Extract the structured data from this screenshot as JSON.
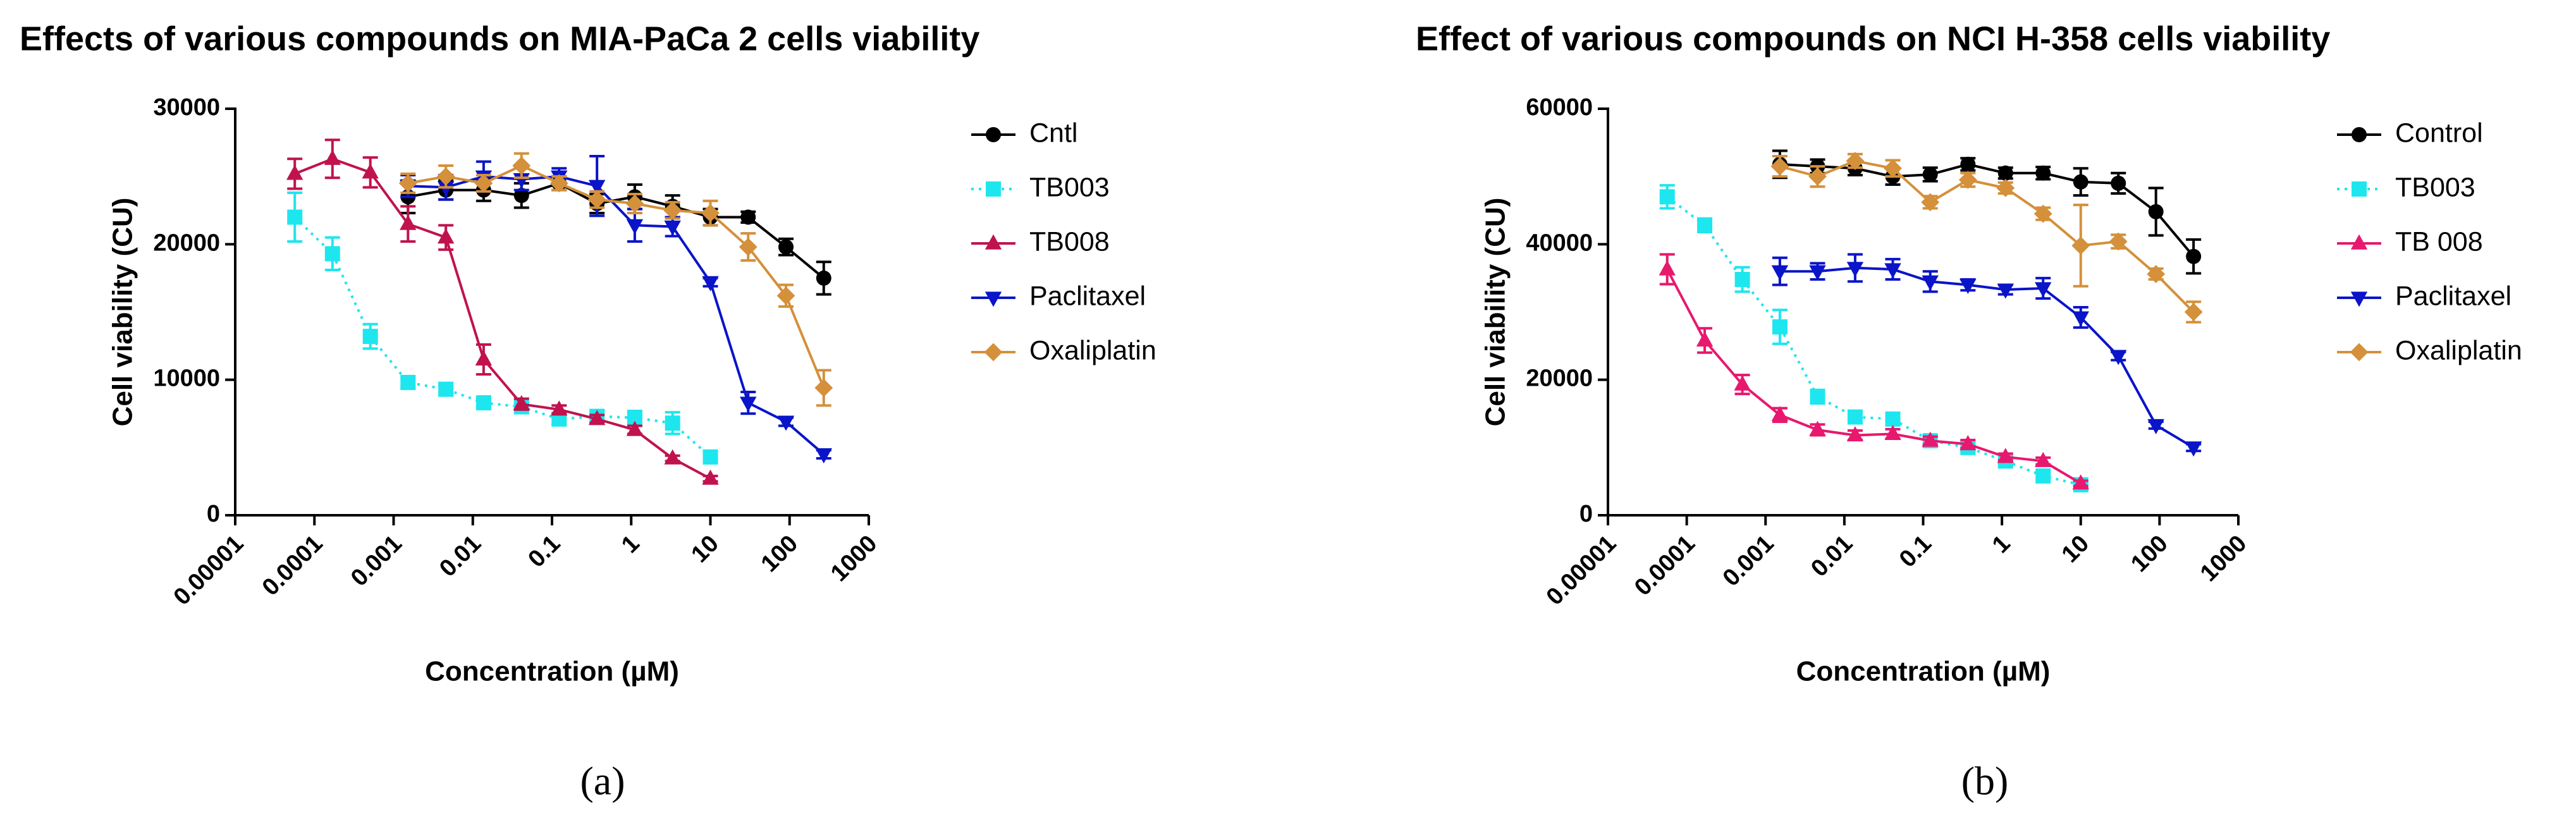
{
  "chart_data": [
    {
      "type": "line",
      "title": "Effects of various compounds on MIA-PaCa 2 cells viability",
      "label": "(a)",
      "x_label": "Concentration (µM)",
      "y_label": "Cell viability (CU)",
      "log_x": true,
      "xlim": [
        1e-05,
        1000
      ],
      "xticks": [
        1e-05,
        0.0001,
        0.001,
        0.01,
        0.1,
        1,
        10,
        100,
        1000
      ],
      "ylim": [
        0,
        30000
      ],
      "yticks": [
        0,
        10000,
        20000,
        30000
      ],
      "legend": "right",
      "series": [
        {
          "name": "Cntl",
          "color": "#000000",
          "marker": "circle",
          "dash": "solid",
          "x": [
            0.00152,
            0.00457,
            0.0137,
            0.0412,
            0.123,
            0.37,
            1.11,
            3.33,
            10,
            30,
            90,
            270
          ],
          "values": [
            23500,
            24000,
            24000,
            23600,
            24500,
            23000,
            23500,
            22800,
            22000,
            22000,
            19800,
            17500
          ],
          "errors": [
            1200,
            700,
            800,
            900,
            500,
            700,
            900,
            800,
            600,
            400,
            600,
            1200
          ]
        },
        {
          "name": "TB003",
          "color": "#1ee6ee",
          "marker": "square",
          "dash": "dotted",
          "x": [
            5.65e-05,
            0.000169,
            0.000508,
            0.00152,
            0.00457,
            0.0137,
            0.0412,
            0.123,
            0.37,
            1.11,
            3.33,
            10
          ],
          "values": [
            22000,
            19300,
            13200,
            9800,
            9300,
            8300,
            8000,
            7100,
            7300,
            7200,
            6800,
            4300
          ],
          "errors": [
            1800,
            1200,
            900,
            400,
            400,
            300,
            300,
            400,
            400,
            500,
            800,
            400
          ]
        },
        {
          "name": "TB008",
          "color": "#c0134e",
          "marker": "triangle-up",
          "dash": "solid",
          "x": [
            5.65e-05,
            0.000169,
            0.000508,
            0.00152,
            0.00457,
            0.0137,
            0.0412,
            0.123,
            0.37,
            1.11,
            3.33,
            10
          ],
          "values": [
            25200,
            26300,
            25300,
            21500,
            20500,
            11500,
            8200,
            7800,
            7100,
            6300,
            4200,
            2700
          ],
          "errors": [
            1100,
            1400,
            1100,
            1300,
            900,
            1100,
            400,
            300,
            300,
            300,
            200,
            200
          ]
        },
        {
          "name": "Paclitaxel",
          "color": "#0a14c8",
          "marker": "triangle-down",
          "dash": "solid",
          "x": [
            0.00152,
            0.00457,
            0.0137,
            0.0412,
            0.123,
            0.37,
            1.11,
            3.33,
            10,
            30,
            90,
            270
          ],
          "values": [
            24300,
            24200,
            25000,
            24800,
            25000,
            24300,
            21400,
            21300,
            17200,
            8300,
            6900,
            4500
          ],
          "errors": [
            800,
            900,
            1100,
            800,
            600,
            2200,
            1200,
            700,
            300,
            800,
            300,
            300
          ]
        },
        {
          "name": "Oxaliplatin",
          "color": "#d4903a",
          "marker": "diamond",
          "dash": "solid",
          "x": [
            0.00152,
            0.00457,
            0.0137,
            0.0412,
            0.123,
            0.37,
            1.11,
            3.33,
            10,
            30,
            90,
            270
          ],
          "values": [
            24500,
            25000,
            24500,
            25800,
            24500,
            23300,
            23000,
            22500,
            22300,
            19800,
            16200,
            9400
          ],
          "errors": [
            700,
            800,
            600,
            900,
            500,
            600,
            700,
            600,
            900,
            1000,
            800,
            1300
          ]
        }
      ]
    },
    {
      "type": "line",
      "title": "Effect of various compounds on NCI H-358 cells viability",
      "label": "(b)",
      "x_label": "Concentration (µM)",
      "y_label": "Cell viability (CU)",
      "log_x": true,
      "xlim": [
        1e-05,
        1000
      ],
      "xticks": [
        1e-05,
        0.0001,
        0.001,
        0.01,
        0.1,
        1,
        10,
        100,
        1000
      ],
      "ylim": [
        0,
        60000
      ],
      "yticks": [
        0,
        20000,
        40000,
        60000
      ],
      "legend": "right",
      "series": [
        {
          "name": "Control",
          "color": "#000000",
          "marker": "circle",
          "dash": "solid",
          "x": [
            0.00152,
            0.00457,
            0.0137,
            0.0412,
            0.123,
            0.37,
            1.11,
            3.33,
            10,
            30,
            90,
            270
          ],
          "values": [
            51800,
            51500,
            51200,
            50000,
            50300,
            51800,
            50500,
            50500,
            49200,
            49000,
            44800,
            38200
          ],
          "errors": [
            2000,
            1000,
            1000,
            1200,
            1000,
            900,
            800,
            900,
            2000,
            1500,
            3500,
            2500
          ]
        },
        {
          "name": "TB003",
          "color": "#1ee6ee",
          "marker": "square",
          "dash": "dotted",
          "x": [
            5.65e-05,
            0.000169,
            0.000508,
            0.00152,
            0.00457,
            0.0137,
            0.0412,
            0.123,
            0.37,
            1.11,
            3.33,
            10
          ],
          "values": [
            47000,
            42800,
            34800,
            27800,
            17500,
            14500,
            14200,
            11000,
            10000,
            8000,
            5800,
            4500
          ],
          "errors": [
            1700,
            1000,
            1800,
            2500,
            1000,
            900,
            800,
            700,
            600,
            700,
            600,
            500
          ]
        },
        {
          "name": "TB 008",
          "color": "#e8186e",
          "marker": "triangle-up",
          "dash": "solid",
          "x": [
            5.65e-05,
            0.000169,
            0.000508,
            0.00152,
            0.00457,
            0.0137,
            0.0412,
            0.123,
            0.37,
            1.11,
            3.33,
            10
          ],
          "values": [
            36300,
            25800,
            19300,
            14800,
            12600,
            11800,
            12000,
            11000,
            10500,
            8600,
            8000,
            4700
          ],
          "errors": [
            2200,
            1800,
            1400,
            1000,
            800,
            700,
            700,
            600,
            600,
            500,
            500,
            400
          ]
        },
        {
          "name": "Paclitaxel",
          "color": "#0a14c8",
          "marker": "triangle-down",
          "dash": "solid",
          "x": [
            0.00152,
            0.00457,
            0.0137,
            0.0412,
            0.123,
            0.37,
            1.11,
            3.33,
            10,
            30,
            90,
            270
          ],
          "values": [
            36000,
            36000,
            36500,
            36300,
            34500,
            34000,
            33300,
            33500,
            29200,
            23500,
            13300,
            10000
          ],
          "errors": [
            2000,
            1200,
            2000,
            1500,
            1500,
            800,
            700,
            1500,
            1500,
            600,
            500,
            500
          ]
        },
        {
          "name": "Oxaliplatin",
          "color": "#d4903a",
          "marker": "diamond",
          "dash": "solid",
          "x": [
            0.00152,
            0.00457,
            0.0137,
            0.0412,
            0.123,
            0.37,
            1.11,
            3.33,
            10,
            30,
            90,
            270
          ],
          "values": [
            51500,
            50000,
            52300,
            51200,
            46200,
            49500,
            48300,
            44500,
            39800,
            40400,
            35600,
            30000
          ],
          "errors": [
            1500,
            1500,
            1000,
            1200,
            900,
            1000,
            800,
            900,
            6000,
            1000,
            800,
            1500
          ]
        }
      ]
    }
  ]
}
